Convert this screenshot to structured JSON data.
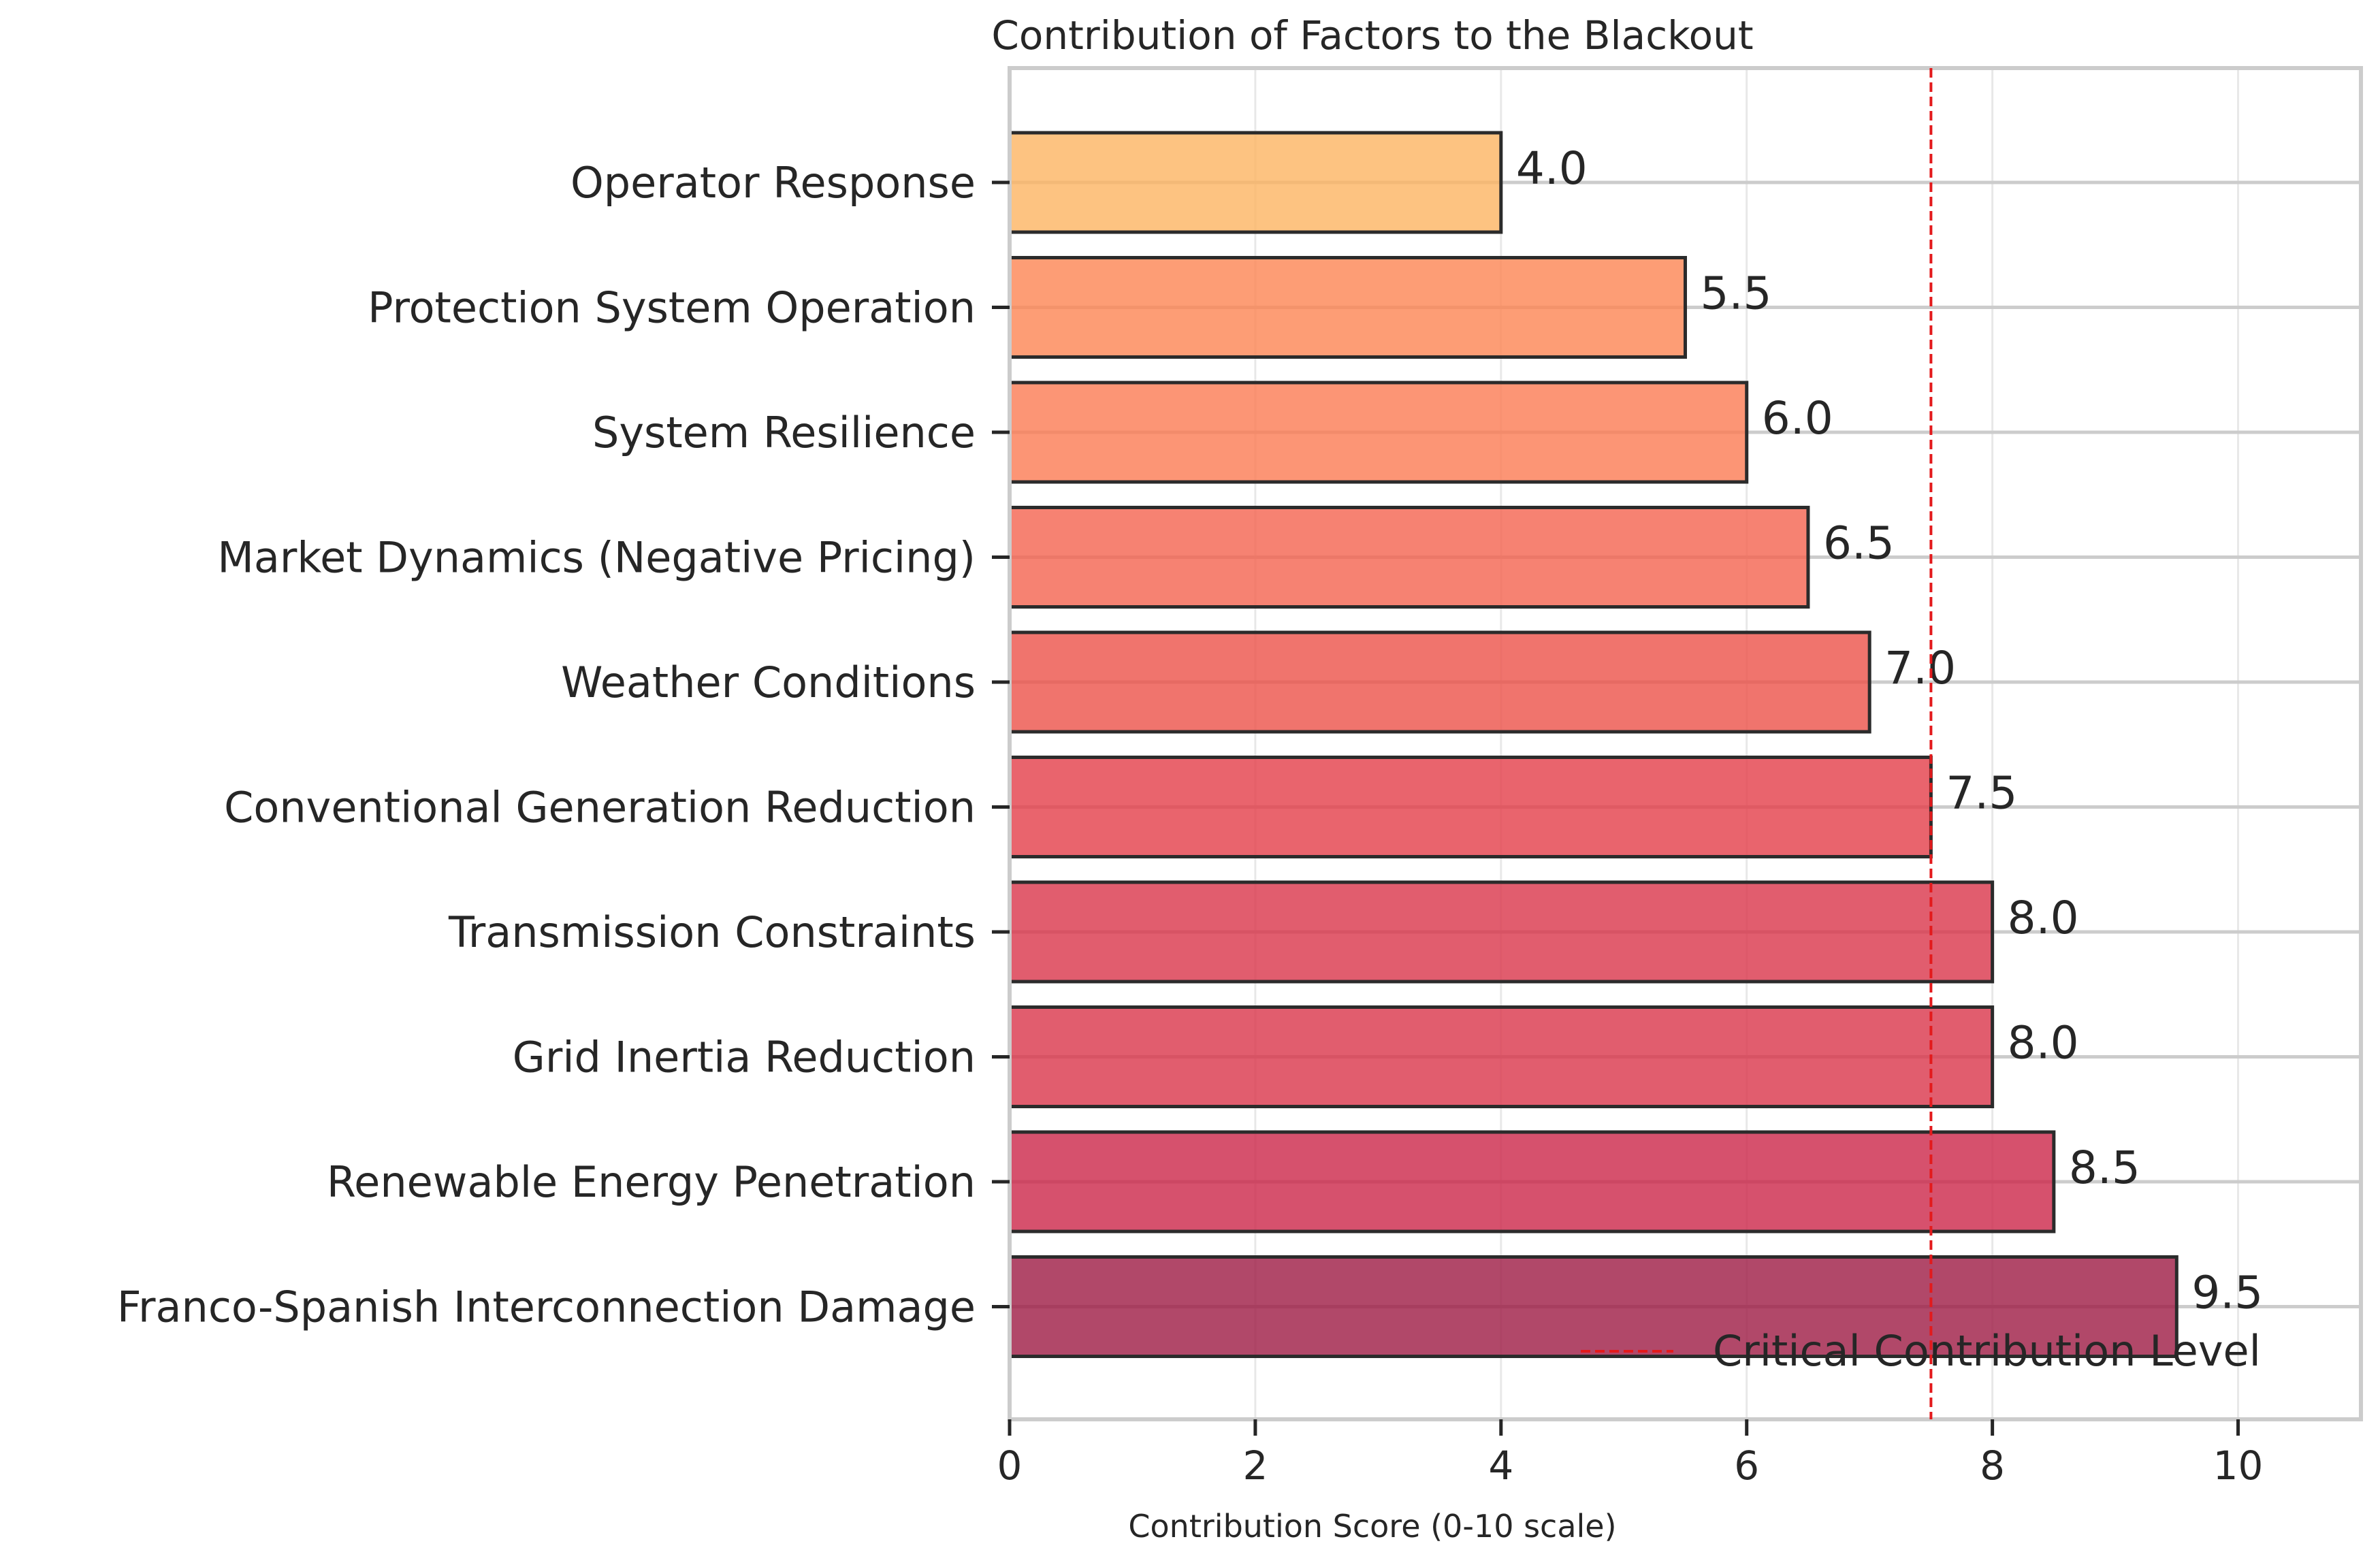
{
  "chart_data": {
    "type": "bar",
    "orientation": "horizontal",
    "title": "Contribution of Factors to the Blackout",
    "xlabel": "Contribution Score (0-10 scale)",
    "ylabel": "",
    "xlim": [
      0,
      11
    ],
    "xticks": [
      0,
      2,
      4,
      6,
      8,
      10
    ],
    "grid": true,
    "categories": [
      "Operator Response",
      "Protection System Operation",
      "System Resilience",
      "Market Dynamics (Negative Pricing)",
      "Weather Conditions",
      "Conventional Generation Reduction",
      "Transmission Constraints",
      "Grid Inertia Reduction",
      "Renewable Energy Penetration",
      "Franco-Spanish Interconnection Damage"
    ],
    "values": [
      4.0,
      5.5,
      6.0,
      6.5,
      7.0,
      7.5,
      8.0,
      8.0,
      8.5,
      9.5
    ],
    "value_labels": [
      "4.0",
      "5.5",
      "6.0",
      "6.5",
      "7.0",
      "7.5",
      "8.0",
      "8.0",
      "8.5",
      "9.5"
    ],
    "colors": [
      "#fdb462",
      "#fc8553",
      "#fb7b53",
      "#f4634f",
      "#ec5149",
      "#e43d49",
      "#d9344a",
      "#d9344a",
      "#cc2649",
      "#9e1a43"
    ],
    "reference_line": {
      "value": 7.5,
      "label": "Critical Contribution Level",
      "color": "#e31a1c"
    },
    "legend_position": "lower-right"
  }
}
